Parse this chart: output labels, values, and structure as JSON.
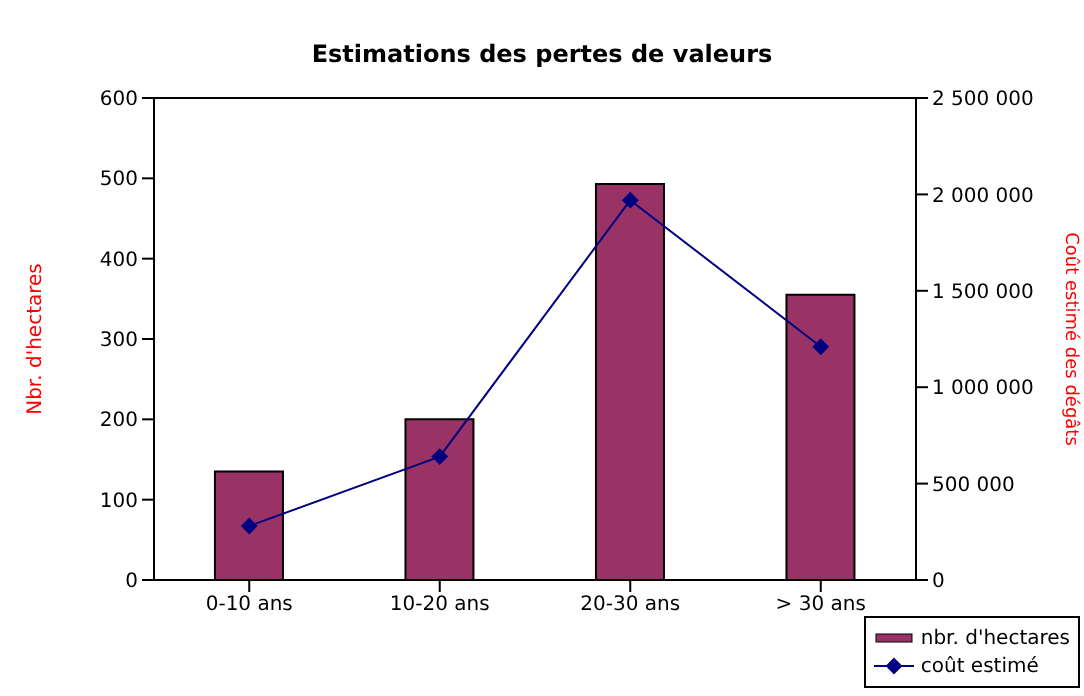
{
  "chart_data": {
    "type": "bar",
    "title": "Estimations des pertes de valeurs",
    "ylabel": "Nbr. d'hectares",
    "y2label": "Coût estimé des dégâts",
    "categories": [
      "0-10 ans",
      "10-20 ans",
      "20-30 ans",
      "> 30 ans"
    ],
    "series": [
      {
        "name": "nbr. d'hectares",
        "color": "#993366",
        "values": [
          135,
          200,
          493,
          355
        ]
      },
      {
        "name": "coût estimé",
        "type": "line",
        "axis": "y2",
        "color": "#000080",
        "marker": "diamond",
        "values": [
          280000,
          640000,
          1970000,
          1210000
        ]
      }
    ],
    "ylim": [
      0,
      600
    ],
    "yticks": [
      0,
      100,
      200,
      300,
      400,
      500,
      600
    ],
    "y2lim": [
      0,
      2500000
    ],
    "y2ticks": [
      0,
      {
        "value": 500000,
        "label": "500 000"
      },
      {
        "value": 1000000,
        "label": "1 000 000"
      },
      {
        "value": 1500000,
        "label": "1 500 000"
      },
      {
        "value": 2000000,
        "label": "2 000 000"
      },
      {
        "value": 2500000,
        "label": "2 500 000"
      }
    ],
    "grid": false,
    "legend": "bottom right"
  }
}
